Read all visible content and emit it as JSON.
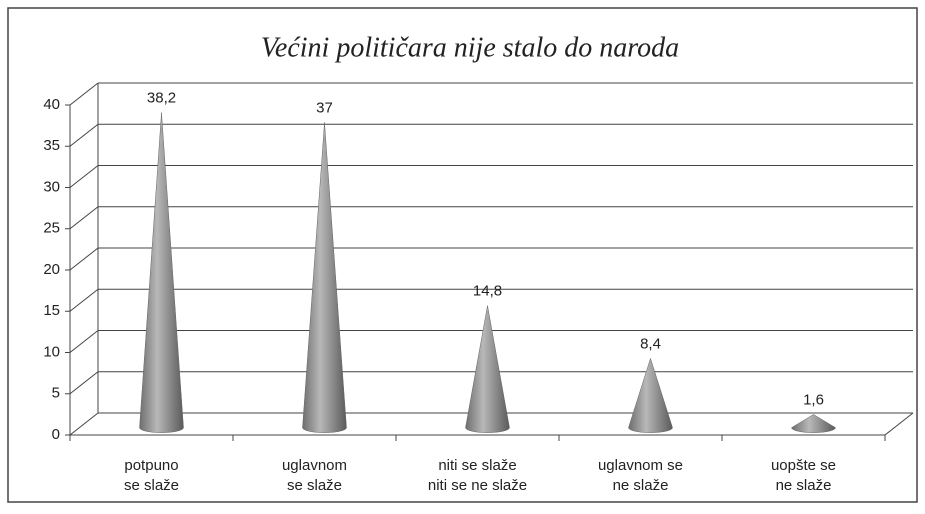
{
  "chart_data": {
    "type": "cone",
    "title": "Većini političara nije stalo do naroda",
    "categories": [
      [
        "potpuno",
        "se slaže"
      ],
      [
        "uglavnom",
        "se slaže"
      ],
      [
        "niti se slaže",
        "niti se ne slaže"
      ],
      [
        "uglavnom se",
        "ne slaže"
      ],
      [
        "uopšte se",
        "ne slaže"
      ]
    ],
    "values": [
      38.2,
      37,
      14.8,
      8.4,
      1.6
    ],
    "value_labels": [
      "38,2",
      "37",
      "14,8",
      "8,4",
      "1,6"
    ],
    "color": "#8c8c8c",
    "ylim": [
      0,
      40
    ],
    "yticks": [
      0,
      5,
      10,
      15,
      20,
      25,
      30,
      35,
      40
    ],
    "grid": true
  }
}
